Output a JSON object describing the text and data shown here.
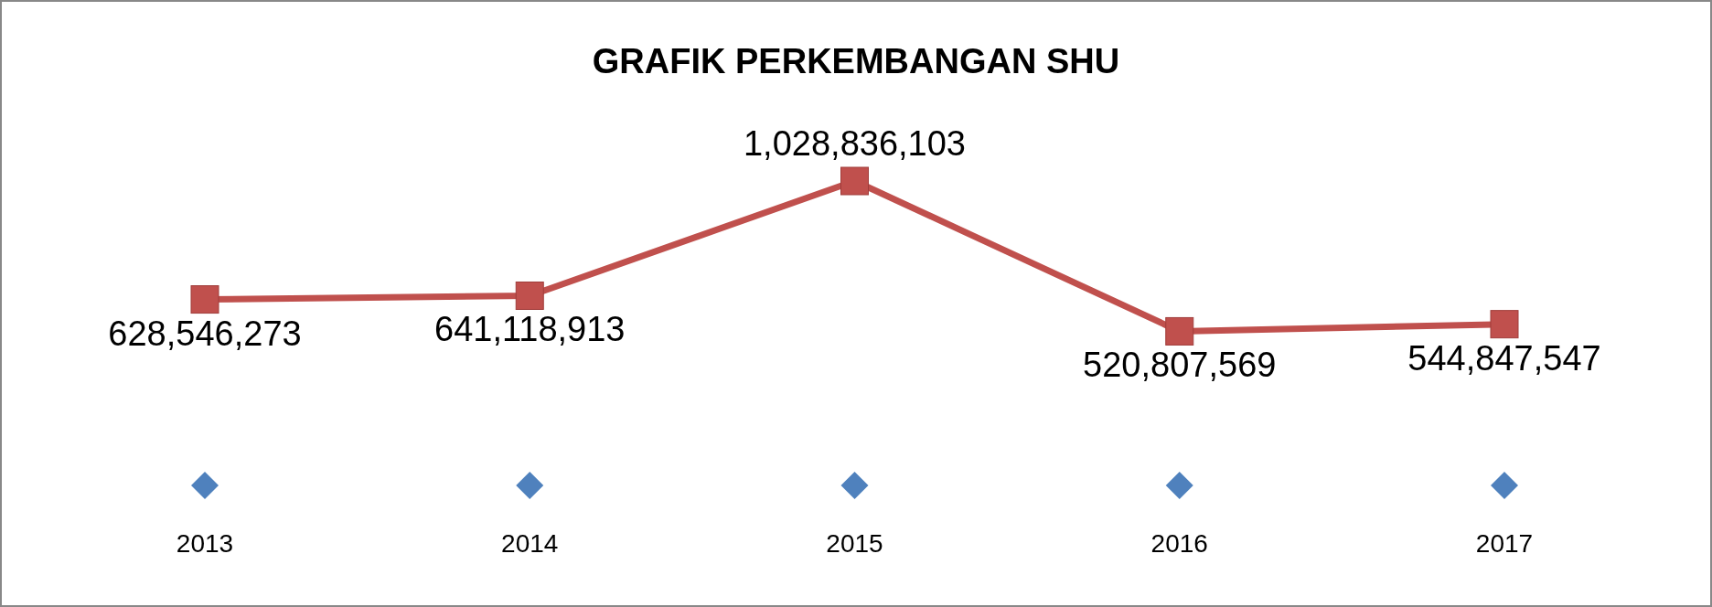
{
  "chart_data": {
    "type": "line",
    "title": "GRAFIK PERKEMBANGAN SHU",
    "categories": [
      "2013",
      "2014",
      "2015",
      "2016",
      "2017"
    ],
    "series": [
      {
        "type": "scatter",
        "color": "#4f81bd",
        "marker": "diamond",
        "values": [
          2013,
          2014,
          2015,
          2016,
          2017
        ]
      },
      {
        "color": "#c0504d",
        "marker": "square",
        "values": [
          628546273,
          641118913,
          1028836103,
          520807569,
          544847547
        ],
        "value_labels": [
          "628,546,273",
          "641,118,913",
          "1,028,836,103",
          "520,807,569",
          "544,847,547"
        ]
      }
    ]
  }
}
